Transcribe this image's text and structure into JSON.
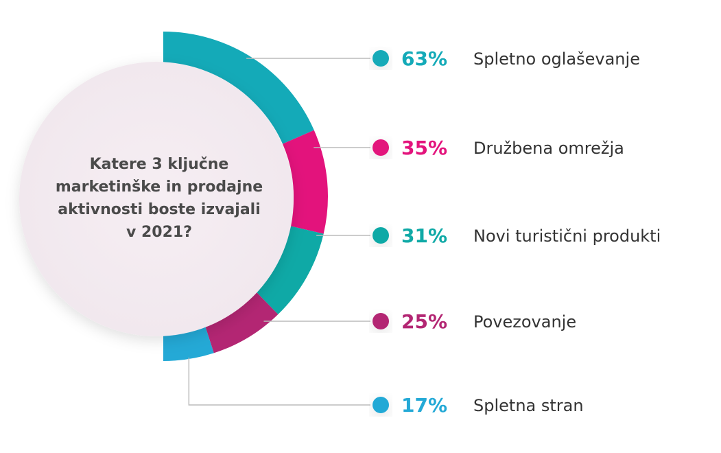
{
  "chart_data": {
    "type": "pie",
    "title": [
      "Katere 3 ključne",
      "marketinške in prodajne",
      "aktivnosti boste izvajali",
      "v 2021?"
    ],
    "categories": [
      "Spletno oglaševanje",
      "Družbena omrežja",
      "Novi turistični produkti",
      "Povezovanje",
      "Spletna stran"
    ],
    "values": [
      63,
      35,
      31,
      25,
      17
    ],
    "value_labels": [
      "63%",
      "35%",
      "31%",
      "25%",
      "17%"
    ],
    "colors": [
      "#14aab8",
      "#e3137c",
      "#0fa9a6",
      "#b32673",
      "#24a9d6"
    ]
  }
}
